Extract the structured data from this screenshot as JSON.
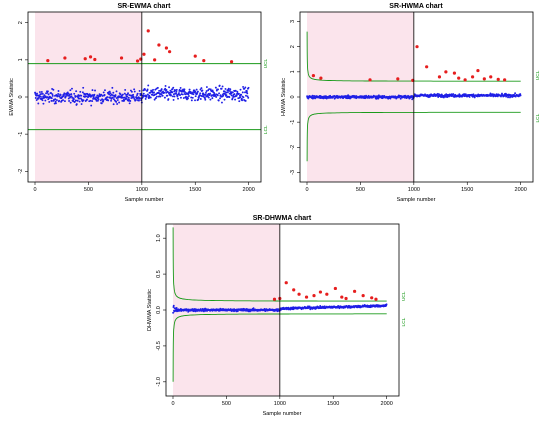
{
  "colors": {
    "phase1_shade": "#fbe4ec",
    "in_control_points": "#1f1fe6",
    "out_of_control_points": "#e61e1e",
    "control_limits": "#1a9a1a",
    "change_point_line": "#000000"
  },
  "chart_data": [
    {
      "type": "scatter",
      "title": "SR-EWMA chart",
      "xlabel": "Sample number",
      "ylabel": "EWMA Statistic",
      "xlim": [
        0,
        2050
      ],
      "ylim": [
        -2.1,
        2.1
      ],
      "xticks": [
        "0",
        "500",
        "1000",
        "1500",
        "2000"
      ],
      "yticks": [
        "-2",
        "-1",
        "0",
        "1",
        "2"
      ],
      "limit_labels": {
        "upper": "UCL",
        "lower": "LCL"
      },
      "ucl": 0.9,
      "lcl": -0.88,
      "change_point": 1000,
      "phase1_shaded_range": [
        0,
        1000
      ],
      "n_samples": 2000,
      "in_control_band": [
        -0.8,
        0.85
      ],
      "out_of_control": [
        {
          "x": 120,
          "y": 0.98
        },
        {
          "x": 280,
          "y": 1.05
        },
        {
          "x": 470,
          "y": 1.03
        },
        {
          "x": 520,
          "y": 1.08
        },
        {
          "x": 560,
          "y": 1.01
        },
        {
          "x": 810,
          "y": 1.05
        },
        {
          "x": 960,
          "y": 0.97
        },
        {
          "x": 990,
          "y": 1.02
        },
        {
          "x": 1020,
          "y": 1.15
        },
        {
          "x": 1060,
          "y": 1.78
        },
        {
          "x": 1120,
          "y": 1.0
        },
        {
          "x": 1160,
          "y": 1.4
        },
        {
          "x": 1230,
          "y": 1.32
        },
        {
          "x": 1260,
          "y": 1.22
        },
        {
          "x": 1500,
          "y": 1.1
        },
        {
          "x": 1580,
          "y": 0.98
        },
        {
          "x": 1840,
          "y": 0.95
        }
      ]
    },
    {
      "type": "scatter",
      "title": "SR-HWMA chart",
      "xlabel": "Sample number",
      "ylabel": "HWMA Statistic",
      "xlim": [
        0,
        2050
      ],
      "ylim": [
        -3.1,
        3.1
      ],
      "xticks": [
        "0",
        "500",
        "1000",
        "1500",
        "2000"
      ],
      "yticks": [
        "-3",
        "-2",
        "-1",
        "0",
        "1",
        "2",
        "3"
      ],
      "limit_labels": {
        "upper": "UCL",
        "lower": "LCL"
      },
      "ucl_steady": 0.62,
      "lcl_steady": -0.6,
      "ucl_start": 2.6,
      "lcl_start": -2.55,
      "change_point": 1000,
      "phase1_shaded_range": [
        0,
        1000
      ],
      "n_samples": 2000,
      "in_control_band": [
        -0.35,
        0.4
      ],
      "out_of_control": [
        {
          "x": 60,
          "y": 0.85
        },
        {
          "x": 130,
          "y": 0.75
        },
        {
          "x": 590,
          "y": 0.68
        },
        {
          "x": 850,
          "y": 0.72
        },
        {
          "x": 990,
          "y": 0.66
        },
        {
          "x": 1030,
          "y": 2.0
        },
        {
          "x": 1120,
          "y": 1.2
        },
        {
          "x": 1240,
          "y": 0.8
        },
        {
          "x": 1300,
          "y": 1.0
        },
        {
          "x": 1380,
          "y": 0.95
        },
        {
          "x": 1420,
          "y": 0.75
        },
        {
          "x": 1480,
          "y": 0.68
        },
        {
          "x": 1550,
          "y": 0.8
        },
        {
          "x": 1600,
          "y": 1.05
        },
        {
          "x": 1660,
          "y": 0.72
        },
        {
          "x": 1720,
          "y": 0.8
        },
        {
          "x": 1790,
          "y": 0.7
        },
        {
          "x": 1850,
          "y": 0.68
        }
      ]
    },
    {
      "type": "scatter",
      "title": "SR-DHWMA chart",
      "xlabel": "Sample number",
      "ylabel": "DHWMA Statistic",
      "xlim": [
        0,
        2050
      ],
      "ylim": [
        -1.1,
        1.1
      ],
      "xticks": [
        "0",
        "500",
        "1000",
        "1500",
        "2000"
      ],
      "yticks": [
        "-1.0",
        "-0.5",
        "0.0",
        "0.5",
        "1.0"
      ],
      "limit_labels": {
        "upper": "UCL",
        "lower": "LCL"
      },
      "ucl_steady": 0.12,
      "lcl_steady": -0.05,
      "ucl_start": 1.15,
      "lcl_start": -1.0,
      "change_point": 1000,
      "phase1_shaded_range": [
        0,
        1000
      ],
      "n_samples": 2000,
      "in_control_band": [
        -0.08,
        0.12
      ],
      "out_of_control": [
        {
          "x": 1060,
          "y": 0.38
        },
        {
          "x": 1130,
          "y": 0.28
        },
        {
          "x": 1180,
          "y": 0.22
        },
        {
          "x": 1250,
          "y": 0.18
        },
        {
          "x": 1320,
          "y": 0.2
        },
        {
          "x": 1380,
          "y": 0.25
        },
        {
          "x": 1440,
          "y": 0.22
        },
        {
          "x": 1520,
          "y": 0.3
        },
        {
          "x": 1580,
          "y": 0.18
        },
        {
          "x": 1620,
          "y": 0.16
        },
        {
          "x": 1700,
          "y": 0.26
        },
        {
          "x": 1780,
          "y": 0.2
        },
        {
          "x": 1860,
          "y": 0.17
        },
        {
          "x": 1900,
          "y": 0.15
        },
        {
          "x": 950,
          "y": 0.15
        },
        {
          "x": 1000,
          "y": 0.16
        }
      ]
    }
  ]
}
